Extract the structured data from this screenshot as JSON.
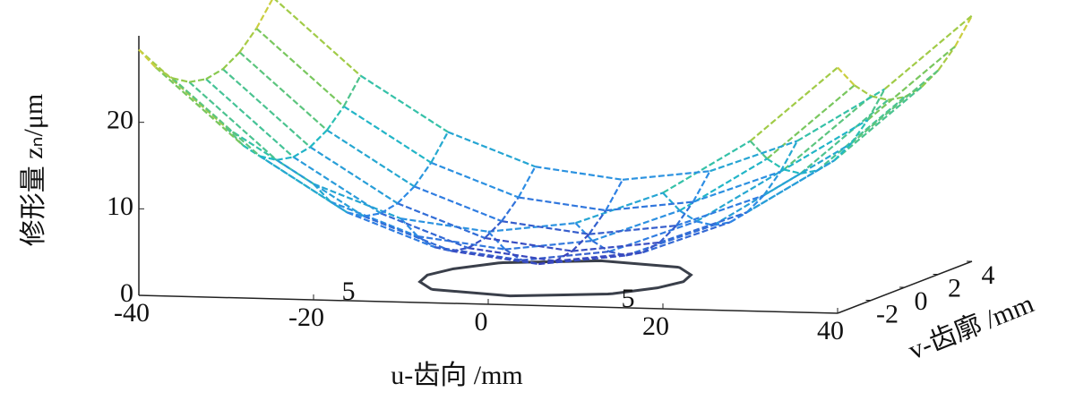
{
  "chart_data": {
    "type": "surface",
    "xlabel": "u-齿向 /mm",
    "ylabel": "v-齿廓 /mm",
    "zlabel": "修形量 zₙ/μm",
    "x": [
      -40,
      -30,
      -20,
      -10,
      0,
      10,
      20,
      30,
      40
    ],
    "y": [
      -4,
      -3,
      -2,
      -1,
      0,
      1,
      2,
      3,
      4
    ],
    "z": [
      [
        28.4,
        19.65,
        13.4,
        9.65,
        8.4,
        9.65,
        13.4,
        19.65,
        28.4
      ],
      [
        25.6,
        16.85,
        10.6,
        6.85,
        5.6,
        6.85,
        10.6,
        16.85,
        25.6
      ],
      [
        23.6,
        14.85,
        8.6,
        4.85,
        3.6,
        4.85,
        8.6,
        14.85,
        23.6
      ],
      [
        22.4,
        13.65,
        7.4,
        3.65,
        2.4,
        3.65,
        7.4,
        13.65,
        22.4
      ],
      [
        22,
        13.25,
        7,
        3.25,
        2,
        3.25,
        7,
        13.25,
        22
      ],
      [
        22.4,
        13.65,
        7.4,
        3.65,
        2.4,
        3.65,
        7.4,
        13.65,
        22.4
      ],
      [
        23.6,
        14.85,
        8.6,
        4.85,
        3.6,
        4.85,
        8.6,
        14.85,
        23.6
      ],
      [
        25.6,
        16.85,
        10.6,
        6.85,
        5.6,
        6.85,
        10.6,
        16.85,
        25.6
      ],
      [
        28.4,
        19.65,
        13.4,
        9.65,
        8.4,
        9.65,
        13.4,
        19.65,
        28.4
      ]
    ],
    "xlim": [
      -40,
      40
    ],
    "xticks": [
      -40,
      -20,
      0,
      20,
      40
    ],
    "ylim": [
      -4,
      4
    ],
    "yticks": [
      -2,
      0,
      2,
      4
    ],
    "zlim": [
      0,
      30
    ],
    "zticks": [
      0,
      10,
      20
    ],
    "contour_levels": [
      5
    ],
    "contour_color": "#3a3f4a",
    "colormap": [
      "#3e26a8",
      "#2e87e8",
      "#1fbfc0",
      "#8cc94a",
      "#f5d13a"
    ]
  }
}
